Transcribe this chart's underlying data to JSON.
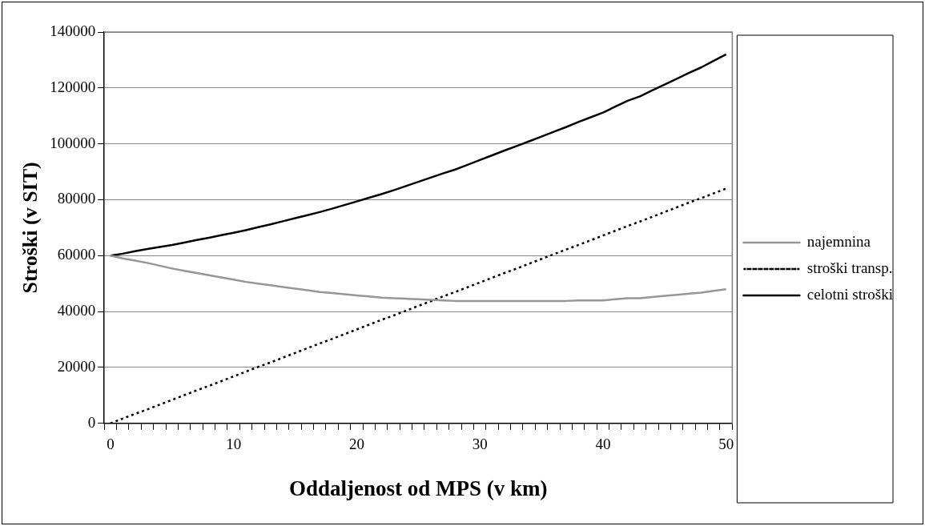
{
  "chart_data": {
    "type": "line",
    "xlabel": "Oddaljenost od MPS (v km)",
    "ylabel": "Stroški (v SIT)",
    "categories": [
      "0",
      null,
      null,
      null,
      null,
      null,
      null,
      null,
      null,
      null,
      "10",
      null,
      null,
      null,
      null,
      null,
      null,
      null,
      null,
      null,
      "20",
      null,
      null,
      null,
      null,
      null,
      null,
      null,
      null,
      null,
      "30",
      null,
      null,
      null,
      null,
      null,
      null,
      null,
      null,
      null,
      "40",
      null,
      null,
      null,
      null,
      null,
      null,
      null,
      null,
      null,
      "50"
    ],
    "series": [
      {
        "name": "najemnina",
        "color": "#969696",
        "line_style": "solid",
        "values": [
          60000,
          59000,
          58200,
          57400,
          56400,
          55400,
          54600,
          53800,
          53000,
          52200,
          51400,
          50600,
          50000,
          49400,
          48800,
          48200,
          47600,
          47000,
          46600,
          46200,
          45800,
          45400,
          45000,
          44800,
          44600,
          44400,
          44200,
          44000,
          43800,
          43800,
          43800,
          43800,
          43800,
          43800,
          43800,
          43800,
          43800,
          43800,
          44000,
          44000,
          44000,
          44400,
          44800,
          44800,
          45200,
          45600,
          46000,
          46400,
          46800,
          47400,
          48000
        ]
      },
      {
        "name": "stroški transp.",
        "color": "#000000",
        "line_style": "dotted",
        "values": [
          0,
          1700,
          3400,
          5000,
          6700,
          8400,
          10100,
          11800,
          13400,
          15100,
          16800,
          18500,
          20200,
          21800,
          23500,
          25200,
          26900,
          28600,
          30200,
          31900,
          33600,
          35300,
          37000,
          38600,
          40300,
          42000,
          43700,
          45400,
          47000,
          48700,
          50400,
          52100,
          53800,
          55400,
          57100,
          58800,
          60500,
          62200,
          63800,
          65500,
          67200,
          68900,
          70600,
          72200,
          73900,
          75600,
          77300,
          79000,
          80600,
          82300,
          84000
        ]
      },
      {
        "name": "celotni stroški",
        "color": "#000000",
        "line_style": "solid",
        "values": [
          60000,
          60700,
          61600,
          62400,
          63100,
          63800,
          64700,
          65600,
          66400,
          67300,
          68200,
          69100,
          70200,
          71200,
          72300,
          73400,
          74500,
          75600,
          76800,
          78100,
          79400,
          80700,
          82000,
          83400,
          84900,
          86400,
          87900,
          89400,
          90800,
          92500,
          94200,
          95900,
          97600,
          99200,
          100900,
          102600,
          104300,
          106000,
          107800,
          109500,
          111200,
          113300,
          115400,
          117000,
          119100,
          121200,
          123300,
          125400,
          127400,
          129700,
          132000
        ]
      }
    ],
    "ylim": [
      0,
      140000
    ],
    "yticks": [
      0,
      20000,
      40000,
      60000,
      80000,
      100000,
      120000,
      140000
    ],
    "grid": "y",
    "legend": "right",
    "marker": "none"
  }
}
